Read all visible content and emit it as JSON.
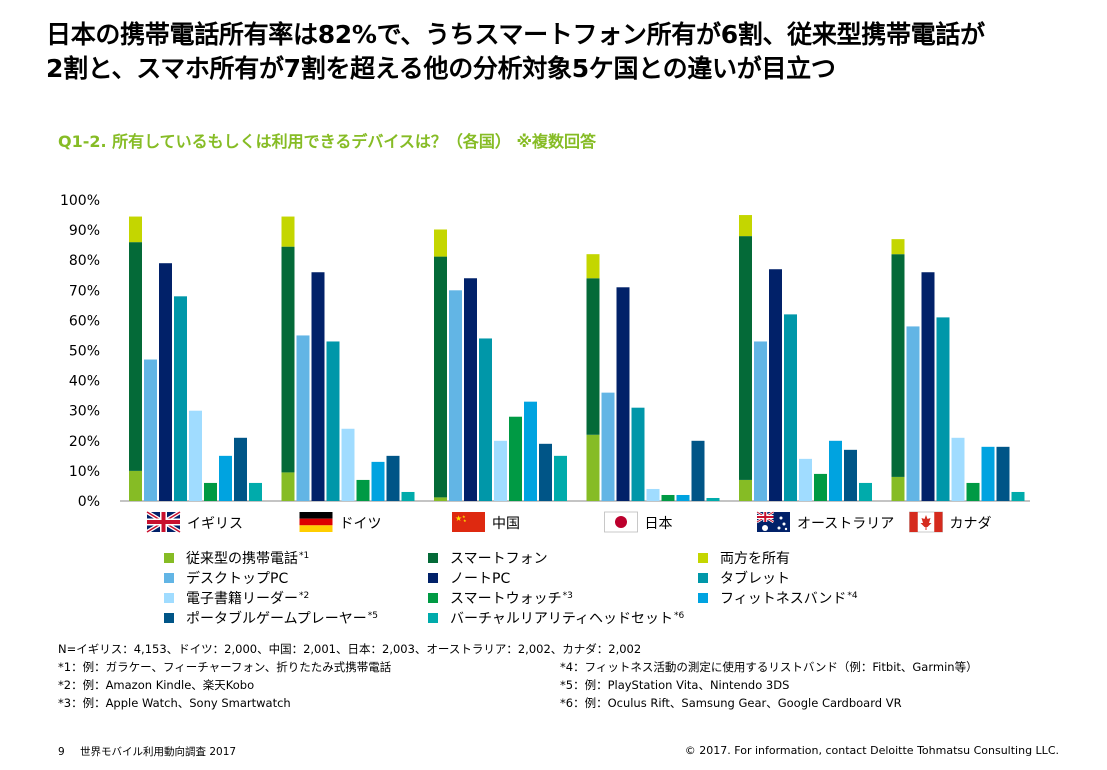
{
  "headline_line1": "日本の携帯電話所有率は82%で、うちスマートフォン所有が6割、従来型携帯電話が",
  "headline_line2": "2割と、スマホ所有が7割を超える他の分析対象5ケ国との違いが目立つ",
  "subtitle": "Q1-2. 所有しているもしくは利用できるデバイスは？（各国） ※複数回答",
  "chart_data": {
    "type": "bar",
    "ylim": [
      0,
      100
    ],
    "yticks": [
      "0%",
      "10%",
      "20%",
      "30%",
      "40%",
      "50%",
      "60%",
      "70%",
      "80%",
      "90%",
      "100%"
    ],
    "categories": [
      "イギリス",
      "ドイツ",
      "中国",
      "日本",
      "オーストラリア",
      "カナダ"
    ],
    "flags": [
      "uk-flag-icon",
      "germany-flag-icon",
      "china-flag-icon",
      "japan-flag-icon",
      "australia-flag-icon",
      "canada-flag-icon"
    ],
    "stacked_phone": {
      "feature_phone": [
        10,
        9.5,
        1.2,
        22,
        7,
        8
      ],
      "smartphone": [
        76,
        75,
        80,
        52,
        81,
        74
      ],
      "both": [
        8.5,
        10,
        9,
        8,
        7,
        5
      ],
      "colors": {
        "feature_phone": "#86bc25",
        "smartphone": "#046a38",
        "both": "#c4d600"
      }
    },
    "series": [
      {
        "name": "デスクトップPC",
        "color": "#62b5e5",
        "values": [
          47,
          55,
          70,
          36,
          53,
          58
        ]
      },
      {
        "name": "ノートPC",
        "color": "#012169",
        "values": [
          79,
          76,
          74,
          71,
          77,
          76
        ]
      },
      {
        "name": "タブレット",
        "color": "#0097a9",
        "values": [
          68,
          53,
          54,
          31,
          62,
          61
        ]
      },
      {
        "name": "電子書籍リーダー",
        "color": "#a0dcff",
        "values": [
          30,
          24,
          20,
          4,
          14,
          21
        ]
      },
      {
        "name": "スマートウォッチ",
        "color": "#009a44",
        "values": [
          6,
          7,
          28,
          2,
          9,
          6
        ]
      },
      {
        "name": "フィットネスバンド",
        "color": "#00a3e0",
        "values": [
          15,
          13,
          33,
          2,
          20,
          18
        ]
      },
      {
        "name": "ポータブルゲームプレーヤー",
        "color": "#005587",
        "values": [
          21,
          15,
          19,
          20,
          17,
          18
        ]
      },
      {
        "name": "バーチャルリアリティヘッドセット",
        "color": "#00abab",
        "values": [
          6,
          3,
          15,
          1,
          6,
          3
        ]
      }
    ]
  },
  "legend": [
    {
      "label": "従来型の携帯電話",
      "note": "*1",
      "color": "#86bc25"
    },
    {
      "label": "スマートフォン",
      "note": "",
      "color": "#046a38"
    },
    {
      "label": "両方を所有",
      "note": "",
      "color": "#c4d600"
    },
    {
      "label": "デスクトップPC",
      "note": "",
      "color": "#62b5e5"
    },
    {
      "label": "ノートPC",
      "note": "",
      "color": "#012169"
    },
    {
      "label": "タブレット",
      "note": "",
      "color": "#0097a9"
    },
    {
      "label": "電子書籍リーダー",
      "note": "*2",
      "color": "#a0dcff"
    },
    {
      "label": "スマートウォッチ",
      "note": "*3",
      "color": "#009a44"
    },
    {
      "label": "フィットネスバンド",
      "note": "*4",
      "color": "#00a3e0"
    },
    {
      "label": "ポータブルゲームプレーヤー",
      "note": "*5",
      "color": "#005587"
    },
    {
      "label": "バーチャルリアリティヘッドセット",
      "note": "*6",
      "color": "#00abab"
    }
  ],
  "notes": {
    "n": "N=イギリス：4,153、ドイツ：2,000、中国：2,001、日本：2,003、オーストラリア：2,002、カナダ：2,002",
    "n1": "*1：例：ガラケー、フィーチャーフォン、折りたたみ式携帯電話",
    "n2": "*2：例：Amazon Kindle、楽天Kobo",
    "n3": "*3：例：Apple Watch、Sony Smartwatch",
    "n4": "*4：フィットネス活動の測定に使用するリストバンド（例：Fitbit、Garmin等）",
    "n5": "*5：例：PlayStation Vita、Nintendo 3DS",
    "n6": "*6：例：Oculus Rift、Samsung Gear、Google Cardboard VR"
  },
  "footer": {
    "page": "9",
    "report": "世界モバイル利用動向調査 2017",
    "copyright": "© 2017. For information, contact Deloitte Tohmatsu Consulting LLC."
  }
}
